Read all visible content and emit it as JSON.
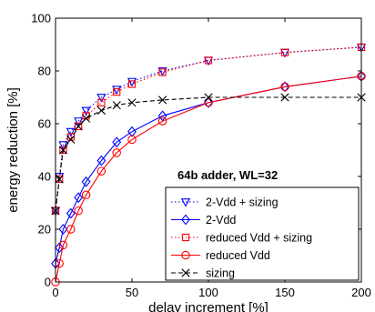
{
  "chart_data": {
    "type": "line",
    "xlabel": "delay increment [%]",
    "ylabel": "energy reduction [%]",
    "xlim": [
      0,
      200
    ],
    "ylim": [
      0,
      100
    ],
    "xticks": [
      0,
      50,
      100,
      150,
      200
    ],
    "yticks": [
      0,
      20,
      40,
      60,
      80,
      100
    ],
    "grid": false,
    "legend_position": "bottom-right",
    "annotation": "64b adder, WL=32",
    "series": [
      {
        "name": "2-Vdd + sizing",
        "color": "#0000ff",
        "dash": "dotted",
        "marker": "triangle-down",
        "points": [
          [
            0,
            27
          ],
          [
            2.5,
            40
          ],
          [
            5,
            52
          ],
          [
            10,
            57
          ],
          [
            15,
            61
          ],
          [
            20,
            65
          ],
          [
            30,
            70
          ],
          [
            40,
            73
          ],
          [
            50,
            76
          ],
          [
            70,
            80
          ],
          [
            100,
            84
          ],
          [
            150,
            87
          ],
          [
            200,
            89
          ]
        ]
      },
      {
        "name": "2-Vdd",
        "color": "#0000ff",
        "dash": "solid",
        "marker": "diamond",
        "points": [
          [
            0,
            7
          ],
          [
            2.5,
            13
          ],
          [
            5,
            20
          ],
          [
            10,
            26
          ],
          [
            15,
            32
          ],
          [
            20,
            38
          ],
          [
            30,
            46
          ],
          [
            40,
            53
          ],
          [
            50,
            57
          ],
          [
            70,
            63
          ],
          [
            100,
            68
          ],
          [
            150,
            74
          ],
          [
            200,
            78
          ]
        ]
      },
      {
        "name": "reduced Vdd + sizing",
        "color": "#ff0000",
        "dash": "dotted",
        "marker": "square",
        "points": [
          [
            0,
            27
          ],
          [
            2.5,
            39
          ],
          [
            5,
            50
          ],
          [
            10,
            55
          ],
          [
            15,
            59
          ],
          [
            20,
            63
          ],
          [
            30,
            68
          ],
          [
            40,
            72
          ],
          [
            50,
            75
          ],
          [
            70,
            79.5
          ],
          [
            100,
            84
          ],
          [
            150,
            87
          ],
          [
            200,
            89
          ]
        ]
      },
      {
        "name": "reduced Vdd",
        "color": "#ff0000",
        "dash": "solid",
        "marker": "circle",
        "points": [
          [
            0,
            0
          ],
          [
            2.5,
            7
          ],
          [
            5,
            14
          ],
          [
            10,
            20
          ],
          [
            15,
            27
          ],
          [
            20,
            33
          ],
          [
            30,
            42
          ],
          [
            40,
            49
          ],
          [
            50,
            54
          ],
          [
            70,
            61
          ],
          [
            100,
            68
          ],
          [
            150,
            74
          ],
          [
            200,
            78
          ]
        ]
      },
      {
        "name": "sizing",
        "color": "#000000",
        "dash": "dashed",
        "marker": "x",
        "points": [
          [
            0,
            27
          ],
          [
            2.5,
            39
          ],
          [
            5,
            50
          ],
          [
            10,
            54
          ],
          [
            15,
            59
          ],
          [
            20,
            62
          ],
          [
            30,
            65
          ],
          [
            40,
            67
          ],
          [
            50,
            68
          ],
          [
            70,
            69
          ],
          [
            100,
            70
          ],
          [
            150,
            70
          ],
          [
            200,
            70
          ]
        ]
      }
    ]
  }
}
